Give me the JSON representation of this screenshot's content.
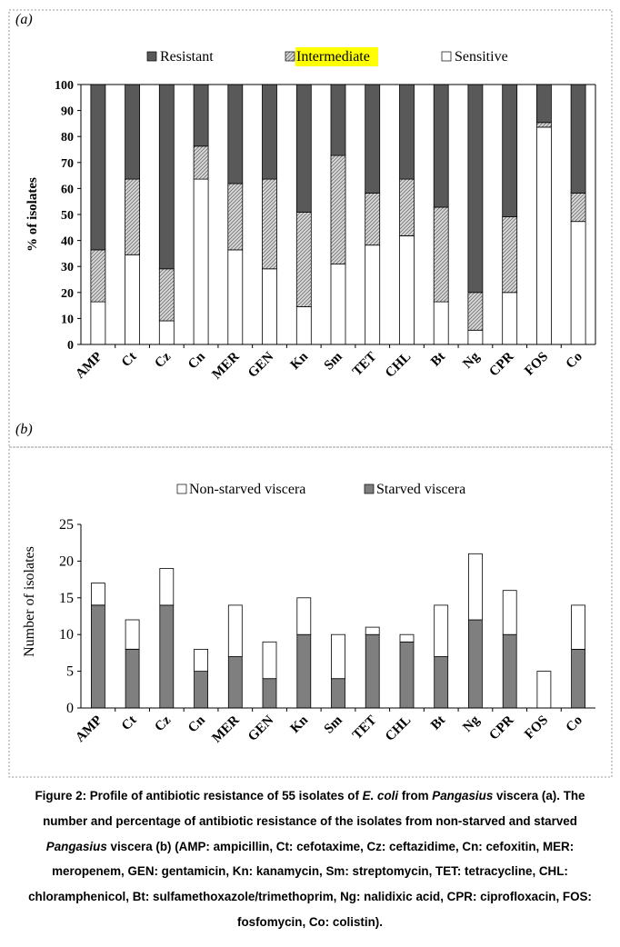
{
  "figure": {
    "caption_parts": [
      {
        "text": "Figure 2: Profile of antibiotic resistance of 55 isolates of ",
        "italic": false
      },
      {
        "text": "E. coli",
        "italic": true
      },
      {
        "text": " from ",
        "italic": false
      },
      {
        "text": "Pangasius",
        "italic": true
      },
      {
        "text": " viscera (a). The number and percentage of antibiotic resistance of the isolates from non-starved and starved ",
        "italic": false
      },
      {
        "text": "Pangasius",
        "italic": true
      },
      {
        "text": " viscera (b) (AMP: ampicillin, Ct: cefotaxime, Cz: ceftazidime, Cn: cefoxitin, MER: meropenem, GEN: gentamicin, Kn: kanamycin, Sm: streptomycin, TET: tetracycline, CHL: chloramphenicol, Bt: sulfamethoxazole/trimethoprim, Ng: nalidixic acid, CPR: ciprofloxacin, FOS: fosfomycin, Co: colistin).",
        "italic": false
      }
    ]
  },
  "colors": {
    "resistant": "#595959",
    "intermediate_fill": "#d9d9d9",
    "intermediate_hatch": "#6e6e6e",
    "sensitive": "#ffffff",
    "starved": "#7f7f7f",
    "non_starved": "#ffffff",
    "legend_highlight": "#ffff00",
    "panel_border": "#999999"
  },
  "chart_data": [
    {
      "panel_label": "(a)",
      "type": "bar",
      "stacked": true,
      "categories": [
        "AMP",
        "Ct",
        "Cz",
        "Cn",
        "MER",
        "GEN",
        "Kn",
        "Sm",
        "TET",
        "CHL",
        "Bt",
        "Ng",
        "CPR",
        "FOS",
        "Co"
      ],
      "series": [
        {
          "name": "Sensitive",
          "values": [
            16.4,
            34.5,
            9.1,
            63.6,
            36.4,
            29.1,
            14.5,
            30.9,
            38.2,
            41.8,
            16.4,
            5.5,
            20.0,
            83.6,
            47.3
          ]
        },
        {
          "name": "Intermediate",
          "values": [
            20.0,
            29.1,
            20.0,
            12.7,
            25.5,
            34.5,
            36.4,
            41.8,
            20.0,
            21.8,
            36.4,
            14.5,
            29.1,
            1.8,
            10.9
          ]
        },
        {
          "name": "Resistant",
          "values": [
            63.6,
            36.4,
            70.9,
            23.7,
            38.1,
            36.4,
            49.1,
            27.3,
            41.8,
            36.4,
            47.2,
            80.0,
            50.9,
            14.6,
            41.8
          ]
        }
      ],
      "legend_order": [
        "Resistant",
        "Intermediate",
        "Sensitive"
      ],
      "highlighted_legend_entry": "Intermediate",
      "xlabel": "",
      "ylabel": "% of isolates",
      "ylim": [
        0,
        100
      ],
      "yticks": [
        "0",
        "10",
        "20",
        "30",
        "40",
        "50",
        "60",
        "70",
        "80",
        "90",
        "100"
      ],
      "legend_placement": "top",
      "grid": false
    },
    {
      "panel_label": "(b)",
      "type": "bar",
      "stacked": true,
      "categories": [
        "AMP",
        "Ct",
        "Cz",
        "Cn",
        "MER",
        "GEN",
        "Kn",
        "Sm",
        "TET",
        "CHL",
        "Bt",
        "Ng",
        "CPR",
        "FOS",
        "Co"
      ],
      "series": [
        {
          "name": "Starved viscera",
          "values": [
            14,
            8,
            14,
            5,
            7,
            4,
            10,
            4,
            10,
            9,
            7,
            12,
            10,
            0,
            8
          ]
        },
        {
          "name": "Non-starved viscera",
          "values": [
            3,
            4,
            5,
            3,
            7,
            5,
            5,
            6,
            1,
            1,
            7,
            9,
            6,
            5,
            6
          ]
        }
      ],
      "legend_order": [
        "Non-starved viscera",
        "Starved viscera"
      ],
      "xlabel": "",
      "ylabel": "Number of isolates",
      "ylim": [
        0,
        25
      ],
      "yticks": [
        "0",
        "5",
        "10",
        "15",
        "20",
        "25"
      ],
      "legend_placement": "top",
      "grid": false
    }
  ]
}
